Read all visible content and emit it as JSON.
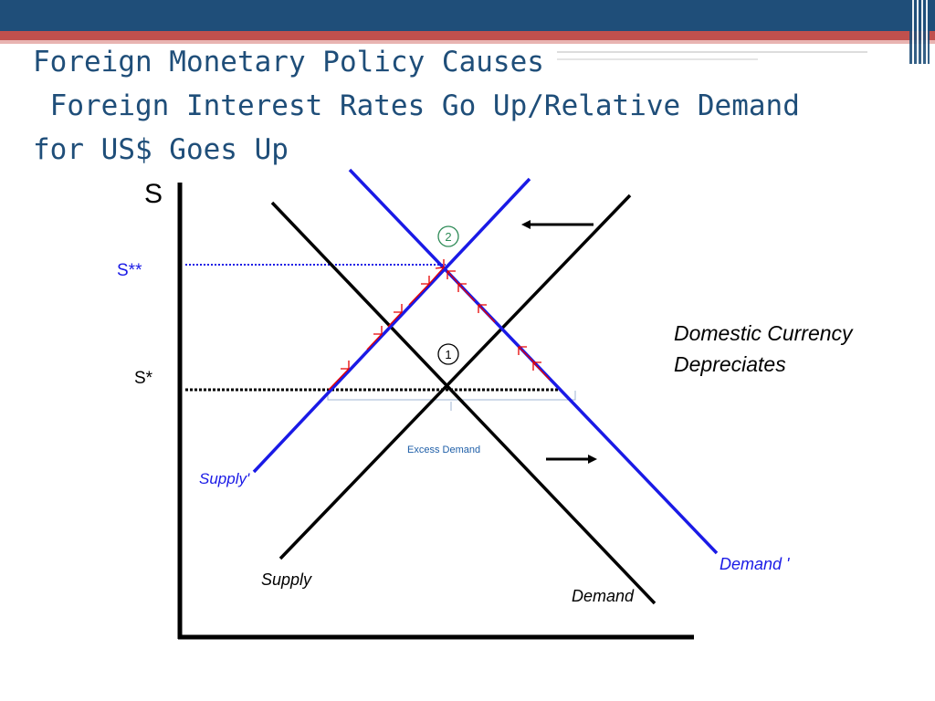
{
  "slide": {
    "title_lines": [
      "Foreign Monetary Policy Causes",
      " Foreign Interest Rates Go Up/Relative Demand",
      "for US$ Goes Up"
    ]
  },
  "diagram": {
    "y_axis_label": "S",
    "price_levels": {
      "s_star_star": "S**",
      "s_star": "S*"
    },
    "curves": {
      "supply": "Supply",
      "supply_prime": "Supply'",
      "demand": "Demand",
      "demand_prime": "Demand '"
    },
    "equilibria": {
      "one": "1",
      "two": "2"
    },
    "excess_demand": "Excess Demand",
    "annotation_lines": [
      "Domestic Currency",
      "Depreciates"
    ]
  },
  "colors": {
    "title": "#1f4e79",
    "header_blue": "#1f4e79",
    "header_red": "#c0504d",
    "axis": "#000000",
    "original_curves": "#000000",
    "shifted_curves": "#1a1ae6",
    "adjustment_arrows": "#e60000",
    "equilibrium_two": "#2e8b57",
    "excess_demand_text": "#1f5fa8"
  }
}
